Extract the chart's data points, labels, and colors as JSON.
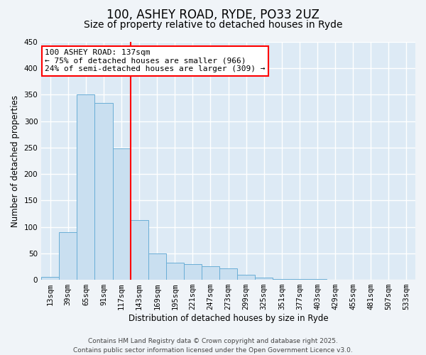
{
  "title": "100, ASHEY ROAD, RYDE, PO33 2UZ",
  "subtitle": "Size of property relative to detached houses in Ryde",
  "xlabel": "Distribution of detached houses by size in Ryde",
  "ylabel": "Number of detached properties",
  "categories": [
    "13sqm",
    "39sqm",
    "65sqm",
    "91sqm",
    "117sqm",
    "143sqm",
    "169sqm",
    "195sqm",
    "221sqm",
    "247sqm",
    "273sqm",
    "299sqm",
    "325sqm",
    "351sqm",
    "377sqm",
    "403sqm",
    "429sqm",
    "455sqm",
    "481sqm",
    "507sqm",
    "533sqm"
  ],
  "values": [
    6,
    90,
    350,
    335,
    248,
    113,
    50,
    32,
    30,
    25,
    21,
    9,
    4,
    1,
    1,
    1,
    0,
    0,
    0,
    0,
    0
  ],
  "bar_color": "#c9dff0",
  "bar_edge_color": "#6aaed6",
  "ylim": [
    0,
    450
  ],
  "yticks": [
    0,
    50,
    100,
    150,
    200,
    250,
    300,
    350,
    400,
    450
  ],
  "red_line_x": 4.5,
  "marker_line_color": "red",
  "annotation_title": "100 ASHEY ROAD: 137sqm",
  "annotation_line1": "← 75% of detached houses are smaller (966)",
  "annotation_line2": "24% of semi-detached houses are larger (309) →",
  "annotation_box_color": "white",
  "annotation_box_edge_color": "red",
  "footer_line1": "Contains HM Land Registry data © Crown copyright and database right 2025.",
  "footer_line2": "Contains public sector information licensed under the Open Government Licence v3.0.",
  "background_color": "#f0f4f8",
  "plot_bg_color": "#ddeaf5",
  "grid_color": "#ffffff",
  "title_fontsize": 12,
  "subtitle_fontsize": 10,
  "axis_label_fontsize": 8.5,
  "tick_fontsize": 7.5,
  "annotation_fontsize": 8,
  "footer_fontsize": 6.5
}
